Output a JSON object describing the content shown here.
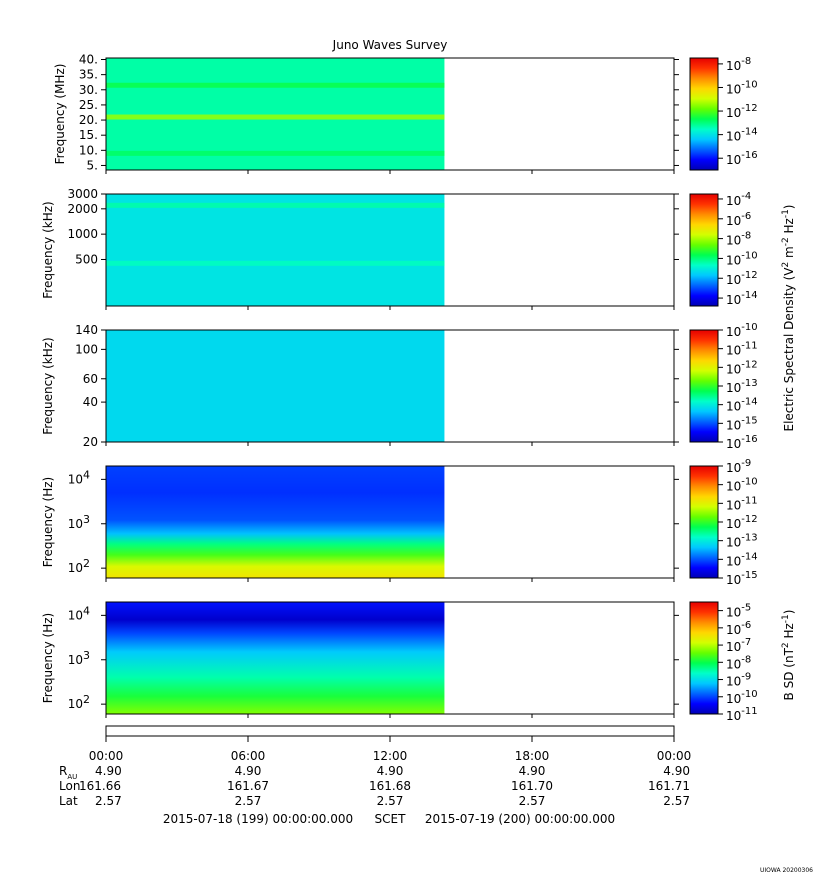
{
  "title": "Juno Waves Survey",
  "credit": "UIOWA 20200306",
  "colors": {
    "scale": [
      "#0000b4",
      "#0000ff",
      "#0064ff",
      "#00c8ff",
      "#00ffc8",
      "#00ff50",
      "#64ff00",
      "#d2ff00",
      "#ffd700",
      "#ff8c00",
      "#ff3200",
      "#e60000"
    ],
    "frame": "#000000"
  },
  "chart_data": [
    {
      "type": "heatmap",
      "ylabel": "Frequency (MHz)",
      "y_ticks": [
        "40.",
        "35.",
        "30.",
        "25.",
        "20.",
        "15.",
        "10.",
        "5."
      ],
      "y_tick_values": [
        40,
        35,
        30,
        25,
        20,
        15,
        10,
        5
      ],
      "ylim": [
        3.5,
        40.5
      ],
      "yscale": "linear",
      "x_coverage_hours": [
        0,
        14.3
      ],
      "colorbar": {
        "labels": [
          "10",
          "10",
          "10",
          "10",
          "10"
        ],
        "exponents": [
          "-8",
          "-10",
          "-12",
          "-14",
          "-16"
        ],
        "exp_values": [
          -8,
          -10,
          -12,
          -14,
          -16
        ],
        "range": [
          -17,
          -7.5
        ]
      },
      "level_exp": -13.3,
      "bands": [
        {
          "y": 21,
          "level_exp": -11.4
        },
        {
          "y": 31.5,
          "level_exp": -12.6
        },
        {
          "y": 9,
          "level_exp": -12.8
        }
      ]
    },
    {
      "type": "heatmap",
      "ylabel": "Frequency (kHz)",
      "y_ticks": [
        "3000",
        "2000",
        "1000",
        "500"
      ],
      "y_tick_values": [
        3000,
        2000,
        1000,
        500
      ],
      "ylim": [
        140,
        3000
      ],
      "yscale": "log",
      "x_coverage_hours": [
        0,
        14.3
      ],
      "colorbar": {
        "labels": [
          "10",
          "10",
          "10",
          "10",
          "10",
          "10"
        ],
        "exponents": [
          "-4",
          "-6",
          "-8",
          "-10",
          "-12",
          "-14"
        ],
        "exp_values": [
          -4,
          -6,
          -8,
          -10,
          -12,
          -14
        ],
        "range": [
          -14.8,
          -3.5
        ]
      },
      "level_exp": -11.2,
      "bands": [
        {
          "y": 450,
          "level_exp": -10.6
        },
        {
          "y": 2200,
          "level_exp": -10.4
        }
      ]
    },
    {
      "type": "heatmap",
      "ylabel": "Frequency (kHz)",
      "y_ticks": [
        "140",
        "100",
        "60",
        "40",
        "20"
      ],
      "y_tick_values": [
        140,
        100,
        60,
        40,
        20
      ],
      "ylim": [
        20,
        140
      ],
      "yscale": "log",
      "x_coverage_hours": [
        0,
        14.3
      ],
      "colorbar": {
        "labels": [
          "10",
          "10",
          "10",
          "10",
          "10",
          "10",
          "10"
        ],
        "exponents": [
          "-10",
          "-11",
          "-12",
          "-13",
          "-14",
          "-15",
          "-16"
        ],
        "exp_values": [
          -10,
          -11,
          -12,
          -13,
          -14,
          -15,
          -16
        ],
        "range": [
          -16,
          -10
        ]
      },
      "level_exp": -14.2,
      "bands": []
    },
    {
      "type": "heatmap",
      "ylabel": "Frequency (Hz)",
      "y_ticks": [
        "10",
        "10",
        "10"
      ],
      "y_tick_exponents": [
        "4",
        "3",
        "2"
      ],
      "y_tick_values": [
        10000,
        1000,
        100
      ],
      "ylim": [
        60,
        20000
      ],
      "yscale": "log",
      "x_coverage_hours": [
        0,
        14.3
      ],
      "colorbar": {
        "labels": [
          "10",
          "10",
          "10",
          "10",
          "10",
          "10",
          "10"
        ],
        "exponents": [
          "-9",
          "-10",
          "-11",
          "-12",
          "-13",
          "-14",
          "-15"
        ],
        "exp_values": [
          -9,
          -10,
          -11,
          -12,
          -13,
          -14,
          -15
        ],
        "range": [
          -15,
          -9
        ]
      },
      "profile": [
        {
          "f": 60,
          "level_exp": -10.8
        },
        {
          "f": 110,
          "level_exp": -11.1
        },
        {
          "f": 200,
          "level_exp": -11.9
        },
        {
          "f": 350,
          "level_exp": -12.5
        },
        {
          "f": 600,
          "level_exp": -13.4
        },
        {
          "f": 1200,
          "level_exp": -14.0
        },
        {
          "f": 5000,
          "level_exp": -14.2
        },
        {
          "f": 20000,
          "level_exp": -14.1
        }
      ]
    },
    {
      "type": "heatmap",
      "ylabel": "Frequency (Hz)",
      "y_ticks": [
        "10",
        "10",
        "10"
      ],
      "y_tick_exponents": [
        "4",
        "3",
        "2"
      ],
      "y_tick_values": [
        10000,
        1000,
        100
      ],
      "ylim": [
        60,
        20000
      ],
      "yscale": "log",
      "x_coverage_hours": [
        0,
        14.3
      ],
      "colorbar": {
        "labels": [
          "10",
          "10",
          "10",
          "10",
          "10",
          "10",
          "10"
        ],
        "exponents": [
          "-5",
          "-6",
          "-7",
          "-8",
          "-9",
          "-10",
          "-11"
        ],
        "exp_values": [
          -5,
          -6,
          -7,
          -8,
          -9,
          -10,
          -11
        ],
        "range": [
          -11,
          -4.5
        ]
      },
      "profile": [
        {
          "f": 60,
          "level_exp": -7.3
        },
        {
          "f": 150,
          "level_exp": -7.9
        },
        {
          "f": 400,
          "level_exp": -8.5
        },
        {
          "f": 1500,
          "level_exp": -9.2
        },
        {
          "f": 4000,
          "level_exp": -10.0
        },
        {
          "f": 8000,
          "level_exp": -10.8
        },
        {
          "f": 20000,
          "level_exp": -10.3
        }
      ]
    }
  ],
  "side_labels": {
    "electric": {
      "text": "Electric Spectral Density (V",
      "sup1": "2",
      "mid": " m",
      "sup2": "-2",
      "mid2": " Hz",
      "sup3": "-1",
      "end": ")"
    },
    "magnetic": {
      "text": "B SD (nT",
      "sup1": "2",
      "mid": " Hz",
      "sup2": "-1",
      "end": ")"
    }
  },
  "time_axis": {
    "x_range_hours": [
      0,
      24
    ],
    "tick_hours": [
      0,
      6,
      12,
      18,
      24
    ],
    "tick_labels": [
      "00:00",
      "06:00",
      "12:00",
      "18:00",
      "00:00"
    ],
    "rows": [
      {
        "label": "R",
        "label_sub": "AU",
        "values": [
          "4.90",
          "4.90",
          "4.90",
          "4.90",
          "4.90"
        ]
      },
      {
        "label": "Lon",
        "values": [
          "161.66",
          "161.67",
          "161.68",
          "161.70",
          "161.71"
        ]
      },
      {
        "label": "Lat",
        "values": [
          "2.57",
          "2.57",
          "2.57",
          "2.57",
          "2.57"
        ]
      }
    ],
    "date_start": "2015-07-18 (199) 00:00:00.000",
    "scet_label": "SCET",
    "date_end": "2015-07-19 (200) 00:00:00.000"
  }
}
